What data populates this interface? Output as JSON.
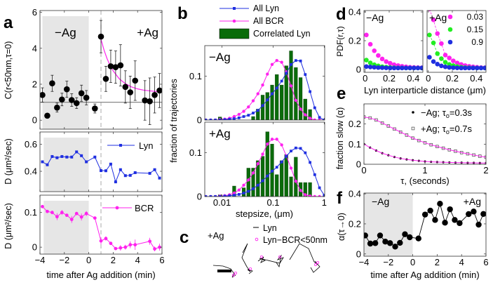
{
  "panel_letters": [
    "a",
    "b",
    "c",
    "d",
    "e",
    "f"
  ],
  "colors": {
    "lyn": "#1f2fe0",
    "bcr": "#ff22ee",
    "correlated": "#0a6b0a",
    "shade": "#e6e6e6",
    "green": "#22ee22",
    "fit": "#ff22ee"
  },
  "chart_data": [
    {
      "panel": "a-top",
      "type": "scatter",
      "ylabel": "C(r<50nm,τ=0)",
      "xlim": [
        -4,
        6
      ],
      "ylim": [
        -0.5,
        6.1
      ],
      "xticks": [
        -4,
        -2,
        0,
        2,
        4,
        6
      ],
      "yticks": [
        0,
        2,
        4,
        6
      ],
      "ytick_labels": [
        "0",
        "2",
        "4",
        "6"
      ],
      "annotations": [
        "−Ag",
        "+Ag"
      ],
      "shaded_region": [
        -3.8,
        0
      ],
      "reference_line": 1,
      "event_marker": 1,
      "x": [
        -3.8,
        -3.4,
        -3.0,
        -2.6,
        -2.2,
        -1.8,
        -1.4,
        -1.0,
        -0.6,
        -0.2,
        0.5,
        1.0,
        1.4,
        1.8,
        2.2,
        2.6,
        3.0,
        3.4,
        3.8,
        4.6,
        5.0,
        5.4,
        5.8
      ],
      "y": [
        1.4,
        0.25,
        2.05,
        0.7,
        1.15,
        1.72,
        1.12,
        0.95,
        1.5,
        1.25,
        0.65,
        4.65,
        2.3,
        3.0,
        2.95,
        3.05,
        1.85,
        1.55,
        2.2,
        1.1,
        1.05,
        1.4,
        1.65
      ],
      "err": [
        0.4,
        0.12,
        0.45,
        0.25,
        0.35,
        0.45,
        0.35,
        0.3,
        0.45,
        0.4,
        0.25,
        0.9,
        0.7,
        0.9,
        0.9,
        1.15,
        0.9,
        0.9,
        1.1,
        1.1,
        1.3,
        1.0,
        0.95
      ],
      "fit": {
        "x": [
          1,
          1.25,
          1.5,
          1.75,
          2,
          2.5,
          3,
          3.5,
          4,
          4.5,
          5,
          5.5,
          6
        ],
        "y": [
          4.5,
          3.9,
          3.42,
          3.04,
          2.74,
          2.3,
          2.03,
          1.85,
          1.74,
          1.67,
          1.63,
          1.6,
          1.58
        ]
      }
    },
    {
      "panel": "a-middle",
      "type": "line",
      "ylabel": "D (μm²/sec)",
      "legend": "Lyn",
      "xlim": [
        -4,
        6
      ],
      "ylim": [
        0.25,
        0.69
      ],
      "xticks": [
        -4,
        -2,
        0,
        2,
        4,
        6
      ],
      "yticks": [
        0.4,
        0.6
      ],
      "ytick_labels": [
        "0.4",
        "0.6"
      ],
      "shaded_region": [
        -3.7,
        0
      ],
      "event_marker": 1,
      "x": [
        -3.8,
        -3.4,
        -3.0,
        -2.6,
        -2.2,
        -1.8,
        -1.4,
        -1.0,
        -0.6,
        -0.2,
        0.5,
        1.0,
        1.4,
        1.8,
        2.2,
        2.6,
        3.0,
        3.4,
        3.8,
        5.0,
        5.4,
        5.8
      ],
      "y": [
        0.47,
        0.448,
        0.509,
        0.5,
        0.509,
        0.505,
        0.505,
        0.543,
        0.515,
        0.47,
        0.505,
        0.405,
        0.404,
        0.453,
        0.322,
        0.412,
        0.368,
        0.37,
        0.39,
        0.385,
        0.412,
        0.35
      ]
    },
    {
      "panel": "a-bottom",
      "type": "line",
      "ylabel": "D (μm²/sec)",
      "legend": "BCR",
      "xlabel": "time after Ag addition (min)",
      "xlim": [
        -4,
        6
      ],
      "ylim": [
        -0.02,
        0.15
      ],
      "xticks": [
        -4,
        -2,
        0,
        2,
        4,
        6
      ],
      "xtick_labels": [
        "−4",
        "−2",
        "0",
        "2",
        "4",
        "6"
      ],
      "yticks": [
        0,
        0.1
      ],
      "ytick_labels": [
        "0",
        "0.1"
      ],
      "shaded_region": [
        -3.7,
        0
      ],
      "event_marker": 1,
      "x": [
        -3.8,
        -3.4,
        -3.0,
        -2.6,
        -2.2,
        -1.8,
        -1.4,
        -1.0,
        -0.6,
        -0.2,
        0.5,
        1.0,
        1.4,
        1.8,
        2.2,
        2.6,
        3.0,
        3.4,
        3.8,
        5.0,
        5.4,
        5.8
      ],
      "y": [
        0.117,
        0.103,
        0.1,
        0.088,
        0.1,
        0.092,
        0.08,
        0.097,
        0.087,
        0.097,
        0.084,
        0.018,
        0.025,
        0.011,
        -0.004,
        -0.002,
        0,
        0.007,
        0.007,
        0.017,
        -0.005,
        0
      ],
      "err": [
        0.002,
        0.003,
        0.005,
        0.01,
        0.007,
        0.004,
        0.01,
        0.004,
        0.01,
        0.007,
        0.003,
        0.01,
        0.006,
        0.004,
        0.004,
        0.008,
        0.007,
        0.01,
        0.015,
        0.01,
        0.007,
        0.01
      ]
    },
    {
      "panel": "b-top",
      "type": "bar+line",
      "annotation": "−Ag",
      "ylabel": "fraction of trajectories",
      "xscale": "log",
      "xlim": [
        0.0046,
        1.02
      ],
      "ylim": [
        0,
        0.17
      ],
      "yticks": [
        0,
        0.1
      ],
      "ytick_labels": [
        "0",
        "0.1"
      ],
      "xticks": [
        0.01,
        0.1,
        1
      ],
      "legend": [
        "All Lyn",
        "All BCR",
        "Correlated Lyn"
      ],
      "x": [
        0.0048,
        0.006,
        0.0074,
        0.0091,
        0.0113,
        0.014,
        0.0173,
        0.0215,
        0.0266,
        0.0329,
        0.0407,
        0.0504,
        0.0624,
        0.0772,
        0.0955,
        0.118,
        0.147,
        0.181,
        0.224,
        0.278,
        0.344,
        0.425,
        0.527,
        0.652,
        0.807,
        1.0
      ],
      "series": [
        {
          "name": "All Lyn",
          "values": [
            0,
            0,
            0,
            0,
            0.001,
            0.002,
            0.003,
            0.005,
            0.008,
            0.011,
            0.016,
            0.022,
            0.033,
            0.046,
            0.06,
            0.073,
            0.089,
            0.107,
            0.127,
            0.136,
            0.135,
            0.104,
            0.065,
            0.028,
            0.006,
            0
          ]
        },
        {
          "name": "All BCR",
          "values": [
            0,
            0,
            0,
            0.001,
            0.002,
            0.004,
            0.008,
            0.013,
            0.02,
            0.03,
            0.044,
            0.06,
            0.08,
            0.105,
            0.127,
            0.136,
            0.132,
            0.11,
            0.078,
            0.045,
            0.025,
            0.012,
            0.004,
            0,
            0,
            0
          ]
        },
        {
          "name": "Correlated Lyn",
          "values": [
            0,
            0,
            0,
            0.007,
            0,
            0,
            0,
            0,
            0,
            0,
            0.008,
            0.025,
            0.057,
            0.063,
            0.08,
            0.104,
            0.08,
            0.124,
            0.158,
            0.12,
            0.097,
            0.048,
            0.024,
            0,
            0,
            0
          ]
        }
      ]
    },
    {
      "panel": "b-bottom",
      "type": "bar+line",
      "annotation": "+Ag",
      "xlabel": "stepsize, (μm)",
      "xscale": "log",
      "xlim": [
        0.0046,
        1.02
      ],
      "ylim": [
        0,
        0.17
      ],
      "yticks": [
        0,
        0.1
      ],
      "ytick_labels": [
        "0",
        "0.1"
      ],
      "xticks": [
        0.01,
        0.1,
        1
      ],
      "xtick_labels": [
        "0.01",
        "0.1",
        "1"
      ],
      "x": [
        0.0048,
        0.006,
        0.0074,
        0.0091,
        0.0113,
        0.014,
        0.0173,
        0.0215,
        0.0266,
        0.0329,
        0.0407,
        0.0504,
        0.0624,
        0.0772,
        0.0955,
        0.118,
        0.147,
        0.181,
        0.224,
        0.278,
        0.344,
        0.425,
        0.527,
        0.652,
        0.807,
        1.0
      ],
      "series": [
        {
          "name": "All Lyn",
          "values": [
            0,
            0,
            0,
            0,
            0.001,
            0.002,
            0.003,
            0.005,
            0.008,
            0.012,
            0.018,
            0.026,
            0.036,
            0.047,
            0.058,
            0.067,
            0.079,
            0.092,
            0.104,
            0.111,
            0.11,
            0.1,
            0.078,
            0.05,
            0.02,
            0.003
          ]
        },
        {
          "name": "All BCR",
          "values": [
            0,
            0,
            0,
            0.001,
            0.002,
            0.004,
            0.008,
            0.015,
            0.026,
            0.038,
            0.054,
            0.075,
            0.097,
            0.12,
            0.131,
            0.131,
            0.118,
            0.093,
            0.065,
            0.035,
            0.014,
            0.004,
            0.001,
            0,
            0,
            0
          ]
        },
        {
          "name": "Correlated Lyn",
          "values": [
            0,
            0,
            0,
            0.004,
            0,
            0,
            0.024,
            0,
            0.02,
            0.065,
            0.065,
            0.082,
            0.092,
            0.148,
            0.12,
            0.05,
            0.082,
            0.096,
            0.045,
            0.09,
            0.032,
            0.032,
            0.032,
            0,
            0,
            0
          ]
        }
      ]
    },
    {
      "panel": "c",
      "type": "trajectories",
      "annotation": "+Ag",
      "legend": [
        "Lyn",
        "Lyn−BCR<50nm"
      ]
    },
    {
      "panel": "d-left",
      "type": "scatter",
      "annotation": "−Ag",
      "ylabel": "PDF(r,τ)",
      "xlim": [
        -0.01,
        0.48
      ],
      "ylim": [
        -0.02,
        0.41
      ],
      "xticks": [
        0,
        0.2,
        0.4
      ],
      "xtick_labels": [
        "0",
        "0.2",
        "0.4"
      ],
      "yticks": [
        0,
        0.2,
        0.4
      ],
      "ytick_labels": [
        "0",
        "0.2",
        "0.4"
      ],
      "x": [
        0.01,
        0.043,
        0.076,
        0.109,
        0.142,
        0.175,
        0.208,
        0.241,
        0.274,
        0.307,
        0.34,
        0.373,
        0.406,
        0.439,
        0.472
      ],
      "series": [
        {
          "name": "0.03",
          "values": [
            0.24,
            0.175,
            0.13,
            0.097,
            0.073,
            0.055,
            0.043,
            0.033,
            0.027,
            0.022,
            0.018,
            0.015,
            0.014,
            0.013,
            0.012
          ]
        },
        {
          "name": "0.15",
          "values": [
            0.065,
            0.046,
            0.033,
            0.025,
            0.019,
            0.016,
            0.014,
            0.012,
            0.011,
            0.011,
            0.01,
            0.01,
            0.01,
            0.01,
            0.01
          ]
        },
        {
          "name": "0.9",
          "values": [
            0.02,
            0.017,
            0.015,
            0.013,
            0.012,
            0.011,
            0.01,
            0.01,
            0.01,
            0.01,
            0.01,
            0.01,
            0.01,
            0.01,
            0.01
          ]
        }
      ]
    },
    {
      "panel": "d-right",
      "type": "scatter",
      "annotation": "+Ag",
      "xlabel": "Lyn interparticle distance (μm)",
      "xlim": [
        -0.01,
        0.48
      ],
      "ylim": [
        -0.02,
        0.41
      ],
      "xticks": [
        0,
        0.2,
        0.4
      ],
      "xtick_labels": [
        "0",
        "0.2",
        "0.4"
      ],
      "legend": [
        "0.03",
        "0.15",
        "0.9"
      ],
      "x": [
        0.01,
        0.043,
        0.076,
        0.109,
        0.142,
        0.175,
        0.208,
        0.241,
        0.274,
        0.307,
        0.34,
        0.373,
        0.406,
        0.439,
        0.472
      ],
      "series": [
        {
          "name": "0.03",
          "values": [
            0.42,
            0.345,
            0.25,
            0.18,
            0.1,
            0.08,
            0.06,
            0.045,
            0.035,
            0.027,
            0.022,
            0.018,
            0.015,
            0.013,
            0.012
          ]
        },
        {
          "name": "0.15",
          "values": [
            0.24,
            0.185,
            0.11,
            0.075,
            0.05,
            0.035,
            0.027,
            0.02,
            0.016,
            0.013,
            0.012,
            0.011,
            0.01,
            0.01,
            0.01
          ]
        },
        {
          "name": "0.9",
          "values": [
            0.085,
            0.055,
            0.037,
            0.025,
            0.018,
            0.014,
            0.012,
            0.011,
            0.01,
            0.01,
            0.01,
            0.01,
            0.01,
            0.01,
            0.01
          ]
        }
      ]
    },
    {
      "panel": "e",
      "type": "scatter",
      "ylabel": "fraction slow (α)",
      "xlabel": "τ, (seconds)",
      "xlim": [
        0,
        2
      ],
      "ylim": [
        0,
        0.3
      ],
      "xticks": [
        0,
        1,
        2
      ],
      "xtick_labels": [
        "0",
        "1",
        "2"
      ],
      "yticks": [
        0,
        0.1,
        0.2
      ],
      "ytick_labels": [
        "0",
        "0.1",
        "0.2"
      ],
      "legend": [
        {
          "prefix": "−Ag; τ",
          "sub": "o",
          "suffix": "=0.3s"
        },
        {
          "prefix": "+Ag; τ",
          "sub": "o",
          "suffix": "=0.7s"
        }
      ],
      "x": [
        0,
        0.1,
        0.2,
        0.3,
        0.4,
        0.5,
        0.6,
        0.7,
        0.8,
        0.9,
        1.0,
        1.1,
        1.2,
        1.3,
        1.4,
        1.5,
        1.6,
        1.7,
        1.8,
        1.9,
        2.0
      ],
      "series": [
        {
          "name": "−Ag",
          "values": [
            0.1,
            0.083,
            0.068,
            0.055,
            0.045,
            0.036,
            0.029,
            0.024,
            0.02,
            0.017,
            0.014,
            0.012,
            0.011,
            0.01,
            0.009,
            0.008,
            0.008,
            0.007,
            0.007,
            0.006,
            0.006
          ]
        },
        {
          "name": "+Ag",
          "values": [
            0.235,
            0.23,
            0.22,
            0.205,
            0.19,
            0.175,
            0.16,
            0.145,
            0.13,
            0.118,
            0.107,
            0.097,
            0.088,
            0.08,
            0.072,
            0.065,
            0.058,
            0.052,
            0.046,
            0.04,
            0.035
          ]
        }
      ]
    },
    {
      "panel": "f",
      "type": "line",
      "ylabel": "α(τ→0)",
      "xlabel": "time after Ag addition (min)",
      "xlim": [
        -4,
        6
      ],
      "ylim": [
        -0.015,
        0.405
      ],
      "xticks": [
        -4,
        -2,
        0,
        2,
        4,
        6
      ],
      "xtick_labels": [
        "−4",
        "−2",
        "0",
        "2",
        "4",
        "6"
      ],
      "yticks": [
        0,
        0.2,
        0.4
      ],
      "ytick_labels": [
        "0",
        "0.2",
        "0.4"
      ],
      "annotations": [
        "−Ag",
        "+Ag"
      ],
      "shaded_region": [
        -4,
        0
      ],
      "x": [
        -3.9,
        -3.48,
        -3.07,
        -2.68,
        -2.25,
        -1.86,
        -1.44,
        -1.05,
        -0.64,
        -0.25,
        0.47,
        1.01,
        1.44,
        1.83,
        2.23,
        2.64,
        3.05,
        3.44,
        3.84,
        4.58,
        4.99,
        5.4,
        5.79
      ],
      "y": [
        0.123,
        0.069,
        0.072,
        0.123,
        0.082,
        0.072,
        0.049,
        0.074,
        0.131,
        0.111,
        0.103,
        0.262,
        0.288,
        0.226,
        0.334,
        0.208,
        0.297,
        0.226,
        0.205,
        0.265,
        0.282,
        0.195,
        0.266
      ]
    }
  ]
}
